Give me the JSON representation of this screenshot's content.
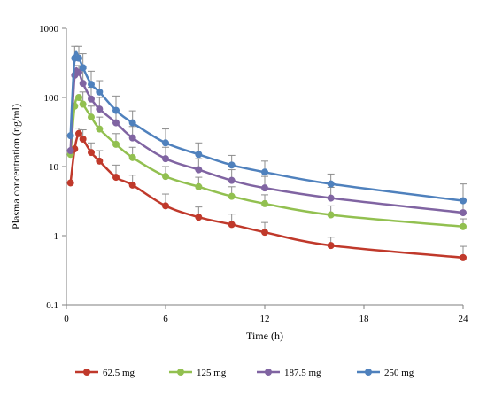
{
  "chart_data": {
    "type": "line",
    "title": "",
    "xlabel": "Time (h)",
    "ylabel": "Plasma concentration (ng/ml)",
    "xlim": [
      0,
      24
    ],
    "ylim": [
      0.1,
      1000
    ],
    "yscale": "log",
    "xticks": [
      0,
      6,
      12,
      18,
      24
    ],
    "xtick_labels": [
      "0",
      "6",
      "12",
      "18",
      "24"
    ],
    "yticks": [
      0.1,
      1,
      10,
      100,
      1000
    ],
    "ytick_labels": [
      "0.1",
      "1",
      "10",
      "100",
      "1000"
    ],
    "grid": false,
    "legend_position": "bottom",
    "x": [
      0.25,
      0.5,
      0.75,
      1,
      1.5,
      2,
      3,
      4,
      6,
      8,
      10,
      12,
      16,
      24
    ],
    "series": [
      {
        "name": "62.5 mg",
        "color": "#c0392b",
        "values": [
          5.8,
          18,
          30,
          25,
          16,
          12,
          7,
          5.4,
          2.7,
          1.85,
          1.45,
          1.12,
          0.72,
          0.48
        ],
        "error_upper": [
          null,
          null,
          36,
          34,
          22,
          17,
          10.5,
          7.5,
          4.0,
          2.6,
          2.05,
          1.55,
          0.95,
          0.7
        ]
      },
      {
        "name": "125 mg",
        "color": "#92c050",
        "values": [
          15,
          75,
          100,
          80,
          52,
          35,
          21,
          13.5,
          7.2,
          5.1,
          3.7,
          2.9,
          2.0,
          1.35
        ],
        "error_upper": [
          null,
          null,
          null,
          120,
          75,
          52,
          30,
          19,
          10,
          7,
          5.1,
          3.9,
          2.7,
          1.75
        ]
      },
      {
        "name": "187.5 mg",
        "color": "#8064a2",
        "values": [
          17,
          210,
          230,
          160,
          95,
          68,
          43,
          26,
          13,
          9,
          6.3,
          4.9,
          3.5,
          2.15
        ],
        "error_upper": [
          null,
          null,
          290,
          260,
          140,
          100,
          65,
          38,
          19,
          13,
          9,
          7.2,
          5,
          3.3
        ]
      },
      {
        "name": "250 mg",
        "color": "#4f81bd",
        "values": [
          28,
          370,
          370,
          270,
          155,
          120,
          65,
          43,
          22,
          15,
          10.5,
          8.3,
          5.6,
          3.2
        ],
        "error_upper": [
          null,
          550,
          550,
          430,
          240,
          175,
          105,
          64,
          35,
          22,
          14.5,
          12,
          7.8,
          5.6
        ]
      }
    ]
  }
}
